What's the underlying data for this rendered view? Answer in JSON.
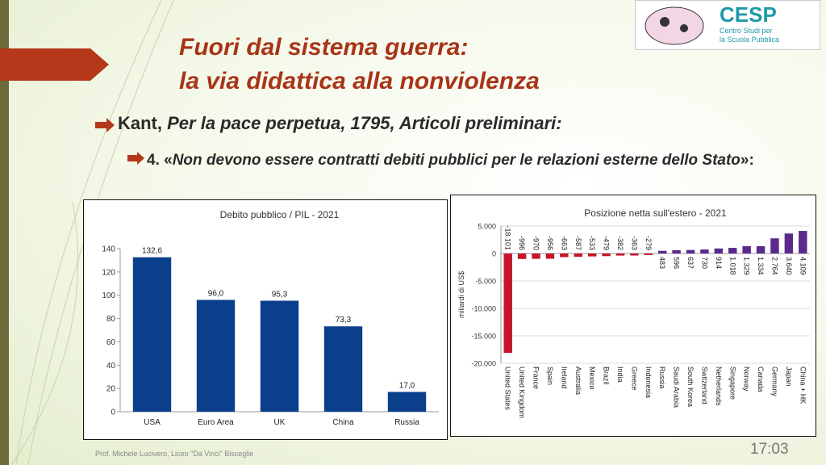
{
  "slide": {
    "title": [
      "Fuori dal sistema guerra:",
      "la via didattica alla nonviolenza"
    ],
    "bullet1": [
      {
        "text": "Kant, ",
        "italic": false
      },
      {
        "text": "Per la pace perpetua, 1795, Articoli preliminari:",
        "italic": true
      }
    ],
    "bullet2": [
      {
        "text": "4. «",
        "italic": false
      },
      {
        "text": "Non devono essere contratti debiti pubblici per le relazioni esterne dello Stato",
        "italic": true
      },
      {
        "text": "»:",
        "italic": false
      }
    ],
    "logo": {
      "name": "CESP",
      "subtitle": [
        "Centro Studi per",
        "la Scuola Pubblica"
      ]
    },
    "footer": "Prof. Michele Lucivero, Liceo \"Da Vinci\" Bisceglie",
    "time": "17:03"
  },
  "chart_data": [
    {
      "type": "bar",
      "title": "Debito pubblico / PIL - 2021",
      "categories": [
        "USA",
        "Euro Area",
        "UK",
        "China",
        "Russia"
      ],
      "values": [
        132.6,
        96.0,
        95.3,
        73.3,
        17.0
      ],
      "value_labels": [
        "132,6",
        "96,0",
        "95,3",
        "73,3",
        "17,0"
      ],
      "color": "#0b3f8c",
      "ylim": [
        0,
        140
      ],
      "yticks": [
        0,
        20,
        40,
        60,
        80,
        100,
        120,
        140
      ],
      "grid": false
    },
    {
      "type": "bar",
      "title": "Posizione netta sull'estero - 2021",
      "ylabel": "miliardi di US$",
      "categories": [
        "United States",
        "United Kingdom",
        "France",
        "Spain",
        "Ireland",
        "Australia",
        "Mexico",
        "Brazil",
        "India",
        "Greece",
        "Indonesia",
        "Russia",
        "Saudi Arabia",
        "South Korea",
        "Switzerland",
        "Netherlands",
        "Singapore",
        "Norway",
        "Canada",
        "Germany",
        "Japan",
        "China + HK"
      ],
      "values": [
        -18101,
        -996,
        -970,
        -956,
        -663,
        -587,
        -533,
        -479,
        -382,
        -363,
        -279,
        483,
        596,
        637,
        730,
        914,
        1018,
        1329,
        1334,
        2764,
        3640,
        4109
      ],
      "value_labels": [
        "-18.101",
        "-996",
        "-970",
        "-956",
        "-663",
        "-587",
        "-533",
        "-479",
        "-382",
        "-363",
        "-279",
        "483",
        "596",
        "637",
        "730",
        "914",
        "1.018",
        "1.329",
        "1.334",
        "2.764",
        "3.640",
        "4.109"
      ],
      "colors": {
        "negative": "#c4162b",
        "positive": "#5b2a8c"
      },
      "ylim": [
        -20000,
        5000
      ],
      "yticks": [
        {
          "value": 5000,
          "label": "5.000"
        },
        0,
        {
          "value": -5000,
          "label": "-5.000"
        },
        {
          "value": -10000,
          "label": "-10.000"
        },
        {
          "value": -15000,
          "label": "-15.000"
        },
        {
          "value": -20000,
          "label": "-20.000"
        }
      ],
      "grid": true
    }
  ]
}
